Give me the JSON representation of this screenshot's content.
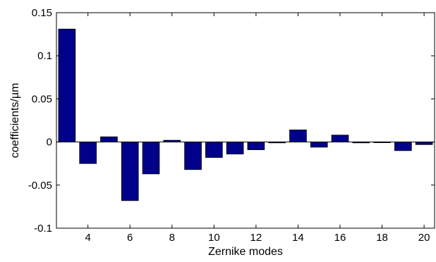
{
  "chart_data": {
    "type": "bar",
    "xlabel": "Zernike modes",
    "ylabel": "coefficients/µm",
    "xlim": [
      2.5,
      20.5
    ],
    "ylim": [
      -0.1,
      0.15
    ],
    "x_ticks": [
      "4",
      "6",
      "8",
      "10",
      "12",
      "14",
      "16",
      "18",
      "20"
    ],
    "y_ticks": [
      "0.15",
      "0.1",
      "0.05",
      "0",
      "-0.05",
      "-0.1"
    ],
    "categories": [
      3,
      4,
      5,
      6,
      7,
      8,
      9,
      10,
      11,
      12,
      13,
      14,
      15,
      16,
      17,
      18,
      19,
      20
    ],
    "values": [
      0.131,
      -0.025,
      0.006,
      -0.068,
      -0.037,
      0.002,
      -0.032,
      -0.018,
      -0.014,
      -0.009,
      -0.001,
      0.014,
      -0.006,
      0.008,
      -0.001,
      0.0,
      -0.01,
      -0.003
    ],
    "bar_color": "#00008b",
    "grid": false,
    "legend": "none"
  }
}
